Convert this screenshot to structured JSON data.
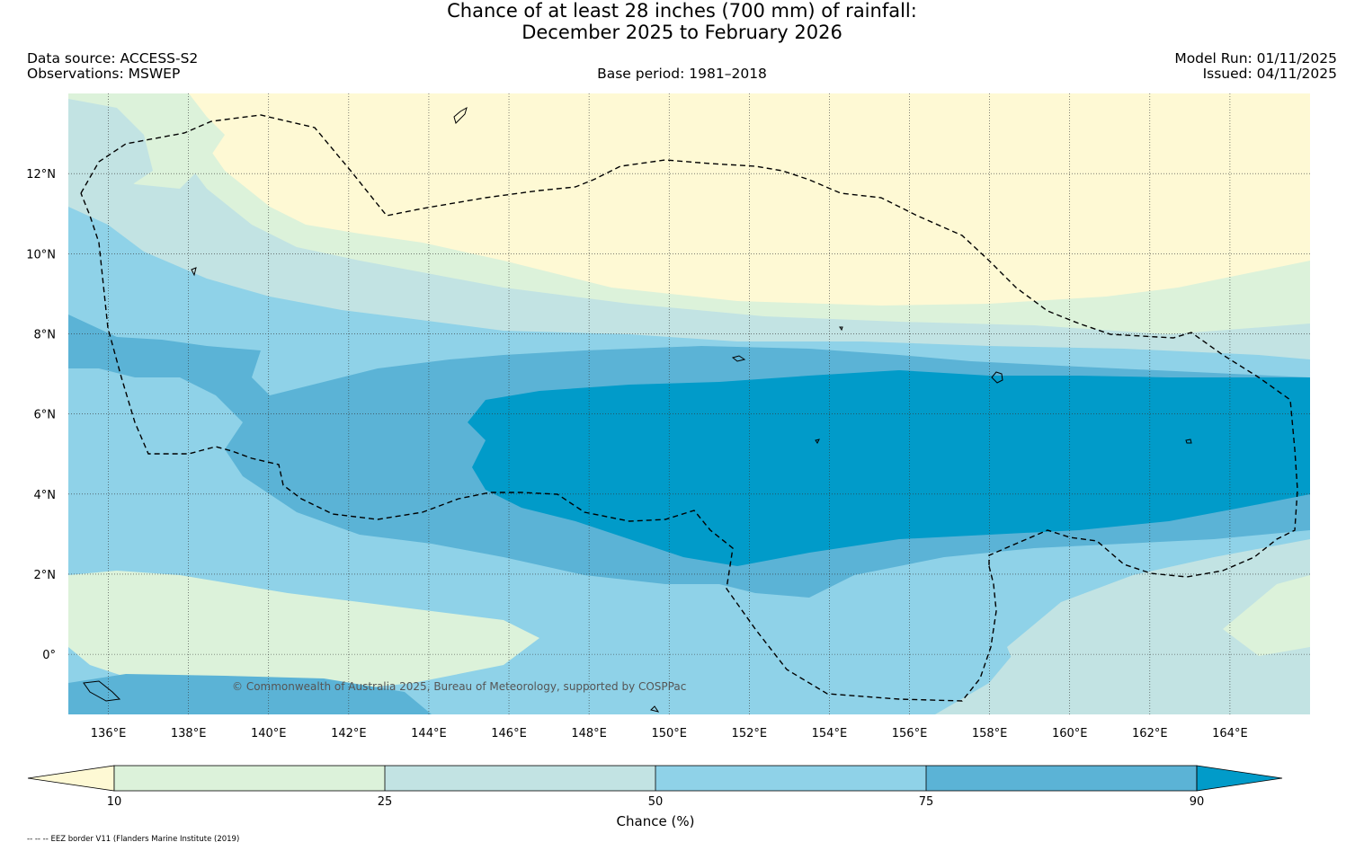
{
  "title": {
    "line1": "Chance of at least 28 inches (700  mm) of rainfall:",
    "line2": "December 2025 to February 2026"
  },
  "meta": {
    "data_source": "Data source: ACCESS-S2",
    "observations": "Observations: MSWEP",
    "base_period": "Base period: 1981–2018",
    "model_run": "Model Run: 01/11/2025",
    "issued": "Issued: 04/11/2025"
  },
  "map": {
    "lon_range": [
      135,
      166
    ],
    "lat_range": [
      -1.5,
      14
    ],
    "lon_ticks": [
      {
        "value": 136,
        "label": "136°E"
      },
      {
        "value": 138,
        "label": "138°E"
      },
      {
        "value": 140,
        "label": "140°E"
      },
      {
        "value": 142,
        "label": "142°E"
      },
      {
        "value": 144,
        "label": "144°E"
      },
      {
        "value": 146,
        "label": "146°E"
      },
      {
        "value": 148,
        "label": "148°E"
      },
      {
        "value": 150,
        "label": "150°E"
      },
      {
        "value": 152,
        "label": "152°E"
      },
      {
        "value": 154,
        "label": "154°E"
      },
      {
        "value": 156,
        "label": "156°E"
      },
      {
        "value": 158,
        "label": "158°E"
      },
      {
        "value": 160,
        "label": "160°E"
      },
      {
        "value": 162,
        "label": "162°E"
      },
      {
        "value": 164,
        "label": "164°E"
      }
    ],
    "lat_ticks": [
      {
        "value": 12,
        "label": "12°N"
      },
      {
        "value": 10,
        "label": "10°N"
      },
      {
        "value": 8,
        "label": "8°N"
      },
      {
        "value": 6,
        "label": "6°N"
      },
      {
        "value": 4,
        "label": "4°N"
      },
      {
        "value": 2,
        "label": "2°N"
      },
      {
        "value": 0,
        "label": "0°"
      }
    ],
    "copyright": "© Commonwealth of Australia 2025, Bureau of Meteorology, supported by COSPPac"
  },
  "colorbar": {
    "label": "Chance (%)",
    "ticks": [
      "10",
      "25",
      "50",
      "75",
      "90"
    ],
    "colors": [
      "#fef9d4",
      "#dcf2da",
      "#c2e3e3",
      "#8fd2e8",
      "#5bb3d6",
      "#019bc9"
    ]
  },
  "footnote": "-- -- -- EEZ border V11 (Flanders Marine Institute (2019)"
}
